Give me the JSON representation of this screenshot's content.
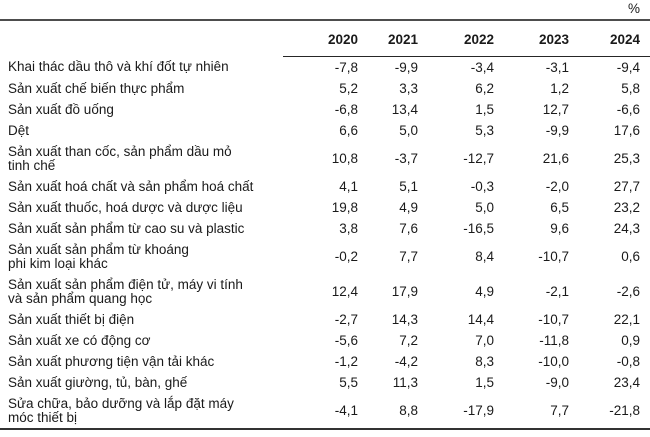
{
  "unit_label": "%",
  "colors": {
    "text": "#1a1a1a",
    "rule_top": "#4d4d4d",
    "rule_header": "#262626",
    "rule_bottom": "#333333",
    "background": "#ffffff"
  },
  "table": {
    "year_headers": [
      "2020",
      "2021",
      "2022",
      "2023",
      "2024"
    ],
    "rows": [
      {
        "label": "Khai thác dầu thô và khí đốt tự nhiên",
        "values": [
          "-7,8",
          "-9,9",
          "-3,4",
          "-3,1",
          "-9,4"
        ]
      },
      {
        "label": "Sản xuất chế biến thực phẩm",
        "values": [
          "5,2",
          "3,3",
          "6,2",
          "1,2",
          "5,8"
        ]
      },
      {
        "label": "Sản xuất đồ uống",
        "values": [
          "-6,8",
          "13,4",
          "1,5",
          "12,7",
          "-6,6"
        ]
      },
      {
        "label": "Dệt",
        "values": [
          "6,6",
          "5,0",
          "5,3",
          "-9,9",
          "17,6"
        ]
      },
      {
        "label": "Sản xuất than cốc, sản phẩm dầu mỏ\ntinh chế",
        "values": [
          "10,8",
          "-3,7",
          "-12,7",
          "21,6",
          "25,3"
        ]
      },
      {
        "label": "Sản xuất hoá chất và sản phẩm hoá chất",
        "values": [
          "4,1",
          "5,1",
          "-0,3",
          "-2,0",
          "27,7"
        ]
      },
      {
        "label": "Sản xuất thuốc, hoá dược và dược liệu",
        "values": [
          "19,8",
          "4,9",
          "5,0",
          "6,5",
          "23,2"
        ]
      },
      {
        "label": "Sản xuất sản phẩm từ cao su và plastic",
        "values": [
          "3,8",
          "7,6",
          "-16,5",
          "9,6",
          "24,3"
        ]
      },
      {
        "label": "Sản xuất sản phẩm từ khoáng\nphi kim loại khác",
        "values": [
          "-0,2",
          "7,7",
          "8,4",
          "-10,7",
          "0,6"
        ]
      },
      {
        "label": "Sản xuất sản phẩm điện tử, máy vi tính\nvà sản phẩm quang học",
        "values": [
          "12,4",
          "17,9",
          "4,9",
          "-2,1",
          "-2,6"
        ]
      },
      {
        "label": "Sản xuất thiết bị điện",
        "values": [
          "-2,7",
          "14,3",
          "14,4",
          "-10,7",
          "22,1"
        ]
      },
      {
        "label": "Sản xuất xe có động cơ",
        "values": [
          "-5,6",
          "7,2",
          "7,0",
          "-11,8",
          "0,9"
        ]
      },
      {
        "label": "Sản xuất phương tiện vận tải khác",
        "values": [
          "-1,2",
          "-4,2",
          "8,3",
          "-10,0",
          "-0,8"
        ]
      },
      {
        "label": "Sản xuất giường, tủ, bàn, ghế",
        "values": [
          "5,5",
          "11,3",
          "1,5",
          "-9,0",
          "23,4"
        ]
      },
      {
        "label": "Sửa chữa, bảo dưỡng và lắp đặt máy\nmóc thiết bị",
        "values": [
          "-4,1",
          "8,8",
          "-17,9",
          "7,7",
          "-21,8"
        ]
      }
    ]
  }
}
